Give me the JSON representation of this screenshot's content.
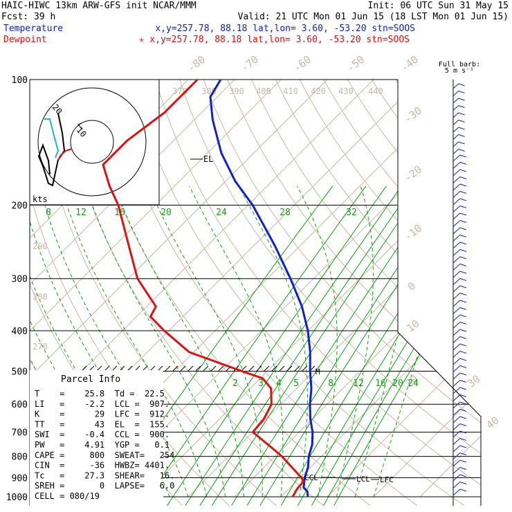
{
  "header": {
    "line1_left": "HAIC-HIWC 13km ARW-GFS init   NCAR/MMM",
    "line1_right": "Init: 06 UTC Sun 31 May 15",
    "line2_left": "Fcst:   39 h",
    "line2_right": "Valid: 21 UTC Mon 01 Jun 15 (18 LST Mon 01 Jun 15)",
    "temp_label": "Temperature",
    "temp_info": "x,y=257.78, 88.18   lat,lon=  3.60, -53.20  stn=SOOS",
    "dew_label": "Dewpoint",
    "dew_info": "✭ x,y=257.78, 88.18   lat,lon=  3.60, -53.20  stn=SOOS"
  },
  "colors": {
    "temperature": "#1020d0",
    "dewpoint": "#e01010",
    "isotherm": "#c8b8a4",
    "mixing_ratio": "#10a010",
    "grid": "#000000",
    "hodo_cyan": "#20b0e0"
  },
  "chart_data": {
    "type": "skew-t log-p sounding",
    "pressure_levels": [
      100,
      200,
      300,
      400,
      500,
      600,
      700,
      800,
      900,
      1000
    ],
    "pressure_labels": [
      "100",
      "200",
      "300",
      "400",
      "500",
      "600",
      "700",
      "800",
      "900",
      "1000"
    ],
    "isotherm_labels": [
      "-80",
      "-70",
      "-60",
      "-50",
      "-40",
      "-30",
      "-20",
      "-10",
      "0",
      "10",
      "20",
      "30",
      "40"
    ],
    "theta_labels_upper": [
      "370",
      "380",
      "390",
      "400",
      "410",
      "420",
      "430",
      "440"
    ],
    "theta_labels_lower": [
      "290",
      "280",
      "270"
    ],
    "mixing_labels_upper": [
      "8",
      "12",
      "16",
      "20",
      "24",
      "28",
      "32"
    ],
    "mixing_labels_lower": [
      "2",
      "3",
      "4",
      "5",
      "8",
      "12",
      "16",
      "20",
      "24"
    ],
    "temperature_profile": [
      {
        "p": 1000,
        "t": 25.8
      },
      {
        "p": 970,
        "t": 24.5
      },
      {
        "p": 950,
        "t": 22.9
      },
      {
        "p": 900,
        "t": 21.0
      },
      {
        "p": 850,
        "t": 19.5
      },
      {
        "p": 800,
        "t": 17.3
      },
      {
        "p": 750,
        "t": 15.5
      },
      {
        "p": 700,
        "t": 12.9
      },
      {
        "p": 650,
        "t": 9.5
      },
      {
        "p": 600,
        "t": 6.3
      },
      {
        "p": 550,
        "t": 3.2
      },
      {
        "p": 500,
        "t": -0.8
      },
      {
        "p": 450,
        "t": -4.9
      },
      {
        "p": 400,
        "t": -10.0
      },
      {
        "p": 350,
        "t": -16.5
      },
      {
        "p": 300,
        "t": -25.0
      },
      {
        "p": 250,
        "t": -35.5
      },
      {
        "p": 200,
        "t": -49.0
      },
      {
        "p": 175,
        "t": -58.0
      },
      {
        "p": 150,
        "t": -67.0
      },
      {
        "p": 125,
        "t": -76.0
      },
      {
        "p": 110,
        "t": -81.5
      },
      {
        "p": 100,
        "t": -83.0
      }
    ],
    "dewpoint_profile": [
      {
        "p": 1000,
        "t": 22.5
      },
      {
        "p": 970,
        "t": 22.0
      },
      {
        "p": 950,
        "t": 21.7
      },
      {
        "p": 920,
        "t": 21.6
      },
      {
        "p": 900,
        "t": 20.3
      },
      {
        "p": 850,
        "t": 16.0
      },
      {
        "p": 800,
        "t": 11.5
      },
      {
        "p": 750,
        "t": 6.0
      },
      {
        "p": 700,
        "t": 0.0
      },
      {
        "p": 650,
        "t": -0.5
      },
      {
        "p": 600,
        "t": -2.0
      },
      {
        "p": 550,
        "t": -5.5
      },
      {
        "p": 520,
        "t": -9.5
      },
      {
        "p": 500,
        "t": -15.5
      },
      {
        "p": 450,
        "t": -31.0
      },
      {
        "p": 400,
        "t": -41.0
      },
      {
        "p": 370,
        "t": -47.0
      },
      {
        "p": 350,
        "t": -48.0
      },
      {
        "p": 300,
        "t": -58.0
      },
      {
        "p": 250,
        "t": -67.0
      },
      {
        "p": 200,
        "t": -78.0
      },
      {
        "p": 180,
        "t": -84.0
      },
      {
        "p": 160,
        "t": -90.0
      },
      {
        "p": 140,
        "t": -90.0
      },
      {
        "p": 120,
        "t": -88.0
      },
      {
        "p": 100,
        "t": -88.0
      }
    ],
    "annotations": {
      "el": "EL",
      "m": "M",
      "ccl": "CCL",
      "lcl": "LCL",
      "lfc": "LFC"
    }
  },
  "hodograph": {
    "units": "kts",
    "ring_labels": [
      "20",
      "10"
    ]
  },
  "wind_legend": {
    "line1": "Full barb:",
    "line2": "5 m s⁻¹"
  },
  "parcel_info": {
    "title": "Parcel Info",
    "rows": [
      "T    =    25.8  Td =  22.5",
      "LI   =    -2.2  LCL =  907.",
      "K    =      29  LFC =  912.",
      "TT   =      43  EL  =  155.",
      "SWI  =    -0.4  CCL =  900.",
      "PW   =    4.91  YGP =   0.1",
      "CAPE =     800  SWEAT=   254",
      "CIN  =     -36  HWBZ= 4401.",
      "Tc   =    27.3  SHEAR=   16.",
      "SREH =       0  LAPSE=   6.0",
      "CELL = 080/19"
    ]
  }
}
